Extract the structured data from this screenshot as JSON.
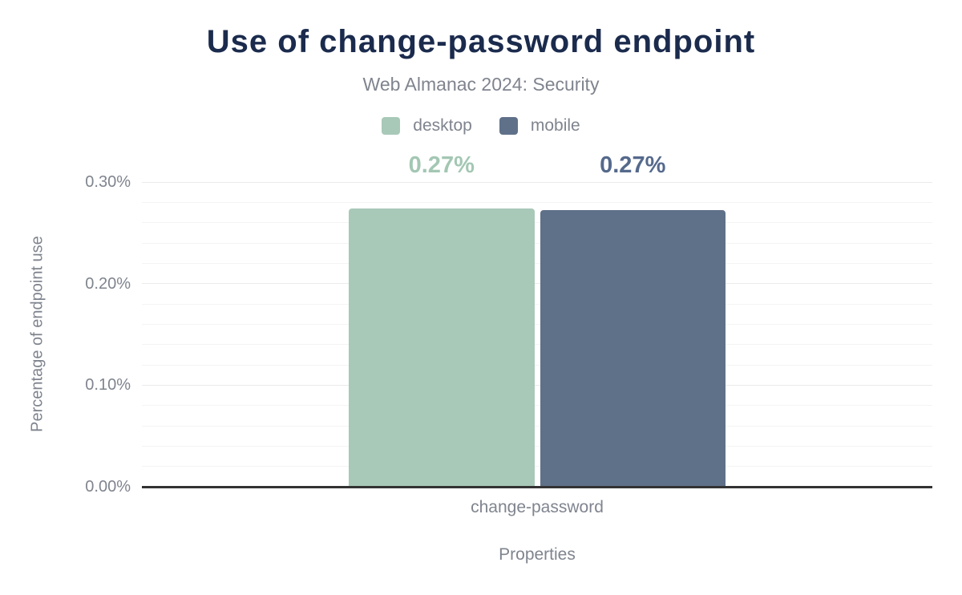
{
  "header": {
    "title": "Use of change-password endpoint",
    "subtitle": "Web Almanac 2024: Security"
  },
  "chart_data": {
    "type": "bar",
    "title": "Use of change-password endpoint",
    "subtitle": "Web Almanac 2024: Security",
    "categories": [
      "change-password"
    ],
    "series": [
      {
        "name": "desktop",
        "color": "#a8c9b8",
        "label_color": "#a3c7b3",
        "values": [
          0.274
        ],
        "data_labels": [
          "0.27%"
        ]
      },
      {
        "name": "mobile",
        "color": "#5f7089",
        "label_color": "#55698c",
        "values": [
          0.272
        ],
        "data_labels": [
          "0.27%"
        ]
      }
    ],
    "xlabel": "Properties",
    "ylabel": "Percentage of endpoint use",
    "ylim": [
      0,
      0.3
    ],
    "yticks": [
      {
        "value": 0.0,
        "label": "0.00%"
      },
      {
        "value": 0.1,
        "label": "0.10%"
      },
      {
        "value": 0.2,
        "label": "0.20%"
      },
      {
        "value": 0.3,
        "label": "0.30%"
      }
    ],
    "minor_grid_step": 0.02,
    "grid": true,
    "legend_position": "top",
    "axis_line_color": "#333333"
  }
}
